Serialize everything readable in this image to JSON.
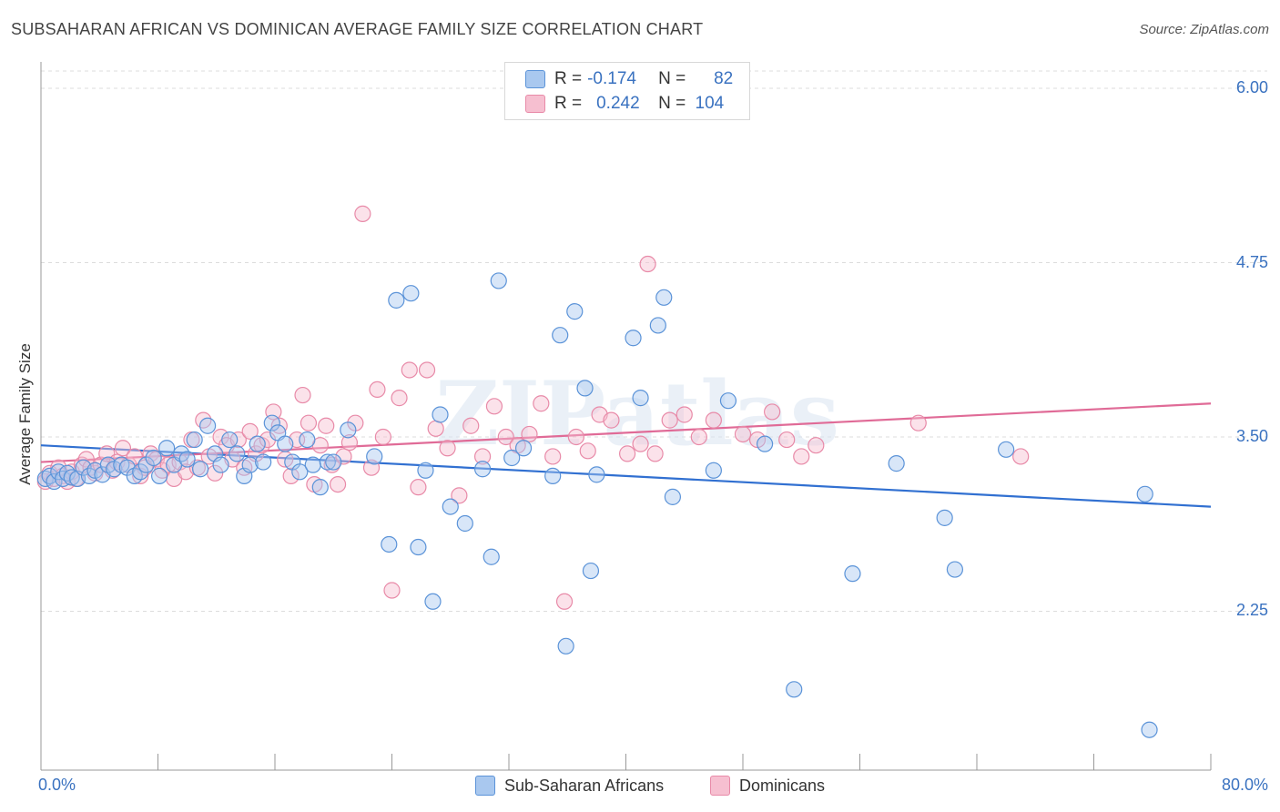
{
  "header": {
    "title": "SUBSAHARAN AFRICAN VS DOMINICAN AVERAGE FAMILY SIZE CORRELATION CHART",
    "source": "Source: ZipAtlas.com"
  },
  "legend": {
    "series": [
      {
        "r_label": "R =",
        "r_value": "-0.174",
        "n_label": "N =",
        "n_value": "82"
      },
      {
        "r_label": "R =",
        "r_value": "0.242",
        "n_label": "N =",
        "n_value": "104"
      }
    ]
  },
  "colors": {
    "blue_fill": "#a9c8ef",
    "blue_stroke": "#5b93d8",
    "blue_line": "#3170d1",
    "pink_fill": "#f6bfd0",
    "pink_stroke": "#e88aa8",
    "pink_line": "#e06b97",
    "axis_text": "#3a72c0",
    "grid": "#dddddd"
  },
  "watermark": "ZIPatlas",
  "chart_data": {
    "type": "scatter",
    "title": "SUBSAHARAN AFRICAN VS DOMINICAN AVERAGE FAMILY SIZE CORRELATION CHART",
    "xlabel": "",
    "ylabel": "Average Family Size",
    "x_tick_labels": [
      "0.0%",
      "80.0%"
    ],
    "y_tick_labels": [
      "6.00",
      "4.75",
      "3.50",
      "2.25"
    ],
    "y_ticks": [
      6.0,
      4.75,
      3.5,
      2.25
    ],
    "xlim": [
      0,
      80
    ],
    "ylim": [
      1.15,
      6.1
    ],
    "grid": true,
    "legend_position": "top-center",
    "series": [
      {
        "name": "Sub-Saharan Africans",
        "color": "#5b93d8",
        "r": -0.174,
        "n": 82,
        "trend": [
          [
            0,
            3.44
          ],
          [
            80,
            3.0
          ]
        ],
        "points": [
          [
            0.3,
            3.2
          ],
          [
            0.6,
            3.22
          ],
          [
            0.9,
            3.18
          ],
          [
            1.2,
            3.25
          ],
          [
            1.5,
            3.2
          ],
          [
            1.8,
            3.24
          ],
          [
            2.1,
            3.21
          ],
          [
            2.5,
            3.2
          ],
          [
            2.9,
            3.28
          ],
          [
            3.3,
            3.22
          ],
          [
            3.7,
            3.26
          ],
          [
            4.2,
            3.23
          ],
          [
            4.6,
            3.3
          ],
          [
            5.0,
            3.27
          ],
          [
            5.5,
            3.3
          ],
          [
            5.9,
            3.28
          ],
          [
            6.4,
            3.22
          ],
          [
            6.8,
            3.25
          ],
          [
            7.2,
            3.3
          ],
          [
            7.7,
            3.35
          ],
          [
            8.1,
            3.22
          ],
          [
            8.6,
            3.42
          ],
          [
            9.1,
            3.3
          ],
          [
            9.6,
            3.38
          ],
          [
            10.0,
            3.34
          ],
          [
            10.5,
            3.48
          ],
          [
            10.9,
            3.27
          ],
          [
            11.4,
            3.58
          ],
          [
            11.9,
            3.38
          ],
          [
            12.3,
            3.3
          ],
          [
            12.9,
            3.48
          ],
          [
            13.4,
            3.38
          ],
          [
            13.9,
            3.22
          ],
          [
            14.3,
            3.3
          ],
          [
            14.8,
            3.45
          ],
          [
            15.2,
            3.32
          ],
          [
            15.8,
            3.6
          ],
          [
            16.2,
            3.53
          ],
          [
            16.7,
            3.45
          ],
          [
            17.2,
            3.32
          ],
          [
            17.7,
            3.25
          ],
          [
            18.2,
            3.48
          ],
          [
            18.6,
            3.3
          ],
          [
            19.1,
            3.14
          ],
          [
            19.6,
            3.32
          ],
          [
            20.0,
            3.32
          ],
          [
            21.0,
            3.55
          ],
          [
            22.8,
            3.36
          ],
          [
            23.8,
            2.73
          ],
          [
            24.3,
            4.48
          ],
          [
            25.3,
            4.53
          ],
          [
            25.8,
            2.71
          ],
          [
            26.3,
            3.26
          ],
          [
            26.8,
            2.32
          ],
          [
            27.3,
            3.66
          ],
          [
            28.0,
            3.0
          ],
          [
            29.0,
            2.88
          ],
          [
            30.2,
            3.27
          ],
          [
            30.8,
            2.64
          ],
          [
            31.3,
            4.62
          ],
          [
            32.2,
            3.35
          ],
          [
            33.0,
            3.42
          ],
          [
            35.0,
            3.22
          ],
          [
            35.5,
            4.23
          ],
          [
            35.9,
            2.0
          ],
          [
            36.5,
            4.4
          ],
          [
            37.2,
            3.85
          ],
          [
            37.6,
            2.54
          ],
          [
            38.0,
            3.23
          ],
          [
            40.5,
            4.21
          ],
          [
            41.0,
            3.78
          ],
          [
            42.2,
            4.3
          ],
          [
            42.6,
            4.5
          ],
          [
            43.2,
            3.07
          ],
          [
            46.0,
            3.26
          ],
          [
            47.0,
            3.76
          ],
          [
            49.5,
            3.45
          ],
          [
            51.5,
            1.69
          ],
          [
            55.5,
            2.52
          ],
          [
            58.5,
            3.31
          ],
          [
            61.8,
            2.92
          ],
          [
            62.5,
            2.55
          ],
          [
            66.0,
            3.41
          ],
          [
            75.5,
            3.09
          ],
          [
            75.8,
            1.4
          ]
        ]
      },
      {
        "name": "Dominicans",
        "color": "#e88aa8",
        "r": 0.242,
        "n": 104,
        "trend": [
          [
            0,
            3.32
          ],
          [
            80,
            3.74
          ]
        ],
        "points": [
          [
            0.3,
            3.18
          ],
          [
            0.6,
            3.24
          ],
          [
            0.9,
            3.2
          ],
          [
            1.2,
            3.28
          ],
          [
            1.5,
            3.22
          ],
          [
            1.8,
            3.18
          ],
          [
            2.1,
            3.25
          ],
          [
            2.4,
            3.2
          ],
          [
            2.8,
            3.3
          ],
          [
            3.1,
            3.34
          ],
          [
            3.4,
            3.28
          ],
          [
            3.7,
            3.24
          ],
          [
            4.1,
            3.3
          ],
          [
            4.5,
            3.38
          ],
          [
            4.9,
            3.26
          ],
          [
            5.2,
            3.32
          ],
          [
            5.6,
            3.42
          ],
          [
            6.0,
            3.3
          ],
          [
            6.4,
            3.36
          ],
          [
            6.8,
            3.22
          ],
          [
            7.1,
            3.28
          ],
          [
            7.5,
            3.38
          ],
          [
            7.9,
            3.34
          ],
          [
            8.3,
            3.26
          ],
          [
            8.7,
            3.3
          ],
          [
            9.1,
            3.2
          ],
          [
            9.5,
            3.32
          ],
          [
            9.9,
            3.25
          ],
          [
            10.3,
            3.48
          ],
          [
            10.7,
            3.28
          ],
          [
            11.1,
            3.62
          ],
          [
            11.5,
            3.36
          ],
          [
            11.9,
            3.24
          ],
          [
            12.3,
            3.5
          ],
          [
            12.7,
            3.44
          ],
          [
            13.1,
            3.34
          ],
          [
            13.5,
            3.48
          ],
          [
            13.9,
            3.28
          ],
          [
            14.3,
            3.54
          ],
          [
            14.7,
            3.38
          ],
          [
            15.1,
            3.44
          ],
          [
            15.5,
            3.48
          ],
          [
            15.9,
            3.68
          ],
          [
            16.3,
            3.58
          ],
          [
            16.7,
            3.34
          ],
          [
            17.1,
            3.22
          ],
          [
            17.5,
            3.48
          ],
          [
            17.9,
            3.8
          ],
          [
            18.3,
            3.6
          ],
          [
            18.7,
            3.16
          ],
          [
            19.1,
            3.44
          ],
          [
            19.5,
            3.58
          ],
          [
            19.9,
            3.3
          ],
          [
            20.3,
            3.16
          ],
          [
            20.7,
            3.36
          ],
          [
            21.1,
            3.46
          ],
          [
            21.5,
            3.6
          ],
          [
            22.0,
            5.1
          ],
          [
            22.6,
            3.28
          ],
          [
            23.0,
            3.84
          ],
          [
            23.4,
            3.5
          ],
          [
            24.0,
            2.4
          ],
          [
            24.5,
            3.78
          ],
          [
            25.2,
            3.98
          ],
          [
            25.8,
            3.14
          ],
          [
            26.4,
            3.98
          ],
          [
            27.0,
            3.56
          ],
          [
            27.8,
            3.42
          ],
          [
            28.6,
            3.08
          ],
          [
            29.4,
            3.58
          ],
          [
            30.2,
            3.36
          ],
          [
            31.0,
            3.72
          ],
          [
            31.8,
            3.5
          ],
          [
            32.6,
            3.44
          ],
          [
            33.4,
            3.52
          ],
          [
            34.2,
            3.74
          ],
          [
            35.0,
            3.36
          ],
          [
            35.8,
            2.32
          ],
          [
            36.6,
            3.5
          ],
          [
            37.4,
            3.4
          ],
          [
            38.2,
            3.66
          ],
          [
            39.0,
            3.62
          ],
          [
            40.1,
            3.38
          ],
          [
            41.0,
            3.45
          ],
          [
            41.5,
            4.74
          ],
          [
            42.0,
            3.38
          ],
          [
            43.0,
            3.62
          ],
          [
            44.0,
            3.66
          ],
          [
            45.0,
            3.5
          ],
          [
            46.0,
            3.62
          ],
          [
            48.0,
            3.52
          ],
          [
            49.0,
            3.48
          ],
          [
            50.0,
            3.68
          ],
          [
            51.0,
            3.48
          ],
          [
            52.0,
            3.36
          ],
          [
            53.0,
            3.44
          ],
          [
            60.0,
            3.6
          ],
          [
            67.0,
            3.36
          ]
        ]
      }
    ]
  }
}
